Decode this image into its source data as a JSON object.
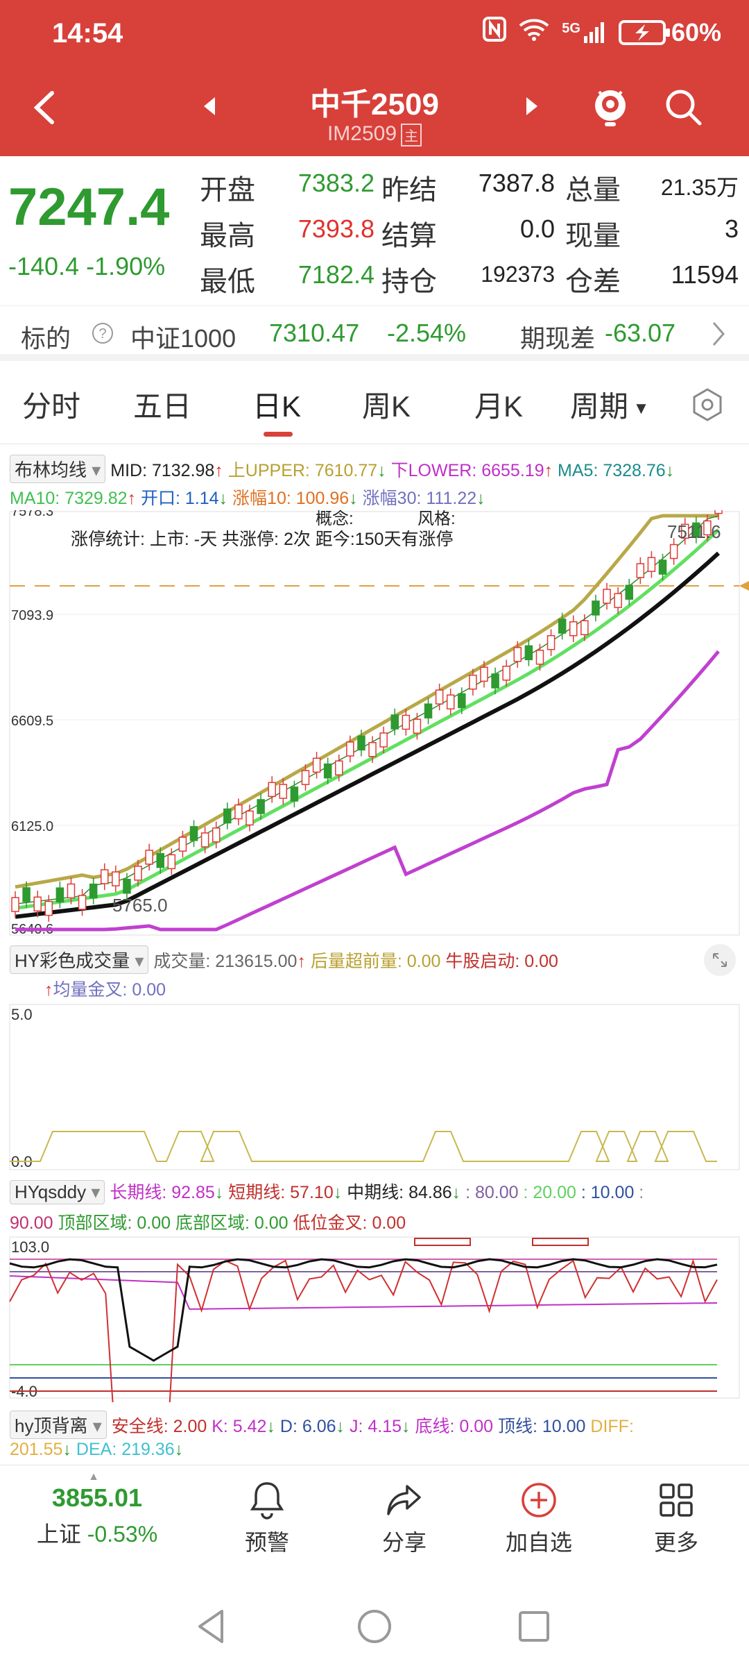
{
  "status": {
    "time": "14:54",
    "network": "5G",
    "battery": "60%"
  },
  "header": {
    "title": "中千2509",
    "subtitle": "IM2509",
    "badge": "主"
  },
  "quote": {
    "price": "7247.4",
    "change": "-140.4",
    "change_pct": "-1.90%",
    "fields": [
      {
        "label": "开盘",
        "value": "7383.2",
        "color": "green"
      },
      {
        "label": "昨结",
        "value": "7387.8",
        "color": "black"
      },
      {
        "label": "总量",
        "value": "21.35万",
        "color": "black"
      },
      {
        "label": "最高",
        "value": "7393.8",
        "color": "red"
      },
      {
        "label": "结算",
        "value": "0.0",
        "color": "black"
      },
      {
        "label": "现量",
        "value": "3",
        "color": "black"
      },
      {
        "label": "最低",
        "value": "7182.4",
        "color": "green"
      },
      {
        "label": "持仓",
        "value": "192373",
        "color": "black"
      },
      {
        "label": "仓差",
        "value": "11594",
        "color": "black"
      }
    ]
  },
  "underlying": {
    "label": "标的",
    "name": "中证1000",
    "price": "7310.47",
    "pct": "-2.54%",
    "basis_label": "期现差",
    "basis": "-63.07"
  },
  "tabs": [
    {
      "label": "分时"
    },
    {
      "label": "五日"
    },
    {
      "label": "日K"
    },
    {
      "label": "周K"
    },
    {
      "label": "月K"
    },
    {
      "label": "周期"
    }
  ],
  "boll": {
    "name": "布林均线",
    "mid": "MID: 7132.98",
    "upper": "上UPPER: 7610.77",
    "lower": "下LOWER: 6655.19",
    "ma5": "MA5: 7328.76",
    "ma10": "MA10: 7329.82",
    "kaikou": "开口: 1.14",
    "zf10": "涨幅10: 100.96",
    "zf30": "涨幅30: 111.22"
  },
  "kline": {
    "y_ticks": [
      "7578.3",
      "7093.9",
      "6609.5",
      "6125.0",
      "5640.6"
    ],
    "concept": "概念:",
    "style": "风格:",
    "limit_stat": "涨停统计: 上市: -天 共涨停: 2次 距今:150天有涨停",
    "hi_label": "7511.6",
    "lo_label": "5765.0"
  },
  "volume": {
    "name": "HY彩色成交量",
    "vol": "成交量: 213615.00",
    "after": "后量超前量: 0.00",
    "bull": "牛股启动: 0.00",
    "cross": "均量金叉: 0.00",
    "y_top": "5.0",
    "y_bottom": "0.0"
  },
  "qsddy": {
    "name": "HYqsddy",
    "long": "长期线: 92.85",
    "short": "短期线: 57.10",
    "mid": "中期线: 84.86",
    "v80": ": 80.00",
    "v20": ": 20.00",
    "v10": ": 10.00",
    "v90": "90.00",
    "top": "顶部区域: 0.00",
    "bottom": "底部区域: 0.00",
    "lowcross": "低位金叉: 0.00",
    "y_top": "103.0",
    "y_bottom": "-4.0"
  },
  "diverge": {
    "name": "hy顶背离",
    "safe": "安全线: 2.00",
    "k": "K: 5.42",
    "d": "D: 6.06",
    "j": "J: 4.15",
    "floor": "底线: 0.00",
    "ceil": "顶线: 10.00",
    "diff_lbl": "DIFF:",
    "diff": "201.55",
    "dea": "DEA: 219.36"
  },
  "bottom_nav": {
    "index_value": "3855.01",
    "index_name": "上证",
    "index_pct": "-0.53%",
    "items": [
      {
        "label": "预警"
      },
      {
        "label": "分享"
      },
      {
        "label": "加自选"
      },
      {
        "label": "更多"
      }
    ]
  },
  "chart_data": {
    "type": "candlestick",
    "series": [
      {
        "name": "MID"
      },
      {
        "name": "UPPER"
      },
      {
        "name": "LOWER"
      },
      {
        "name": "MA5"
      },
      {
        "name": "MA10"
      }
    ],
    "ylim": [
      5640.6,
      7578.3
    ]
  }
}
